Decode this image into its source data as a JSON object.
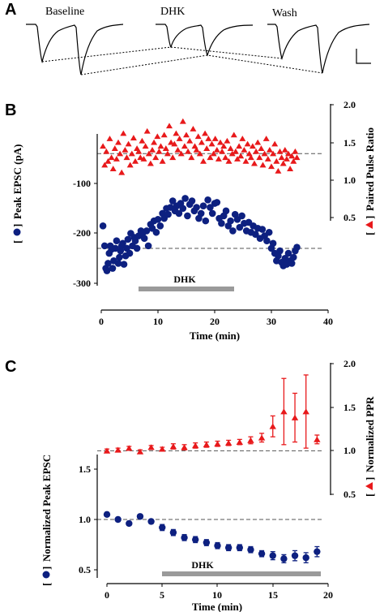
{
  "colors": {
    "ppr": "#e8191b",
    "epsc": "#0d2080",
    "dhk_bar": "#9a9a9a",
    "axis": "#000000",
    "dashed": "#555555"
  },
  "panel_a": {
    "letter": "A",
    "labels": [
      "Baseline",
      "DHK",
      "Wash"
    ]
  },
  "panel_b": {
    "letter": "B",
    "drug_label": "DHK",
    "x_axis_title": "Time (min)",
    "y_left_title": "Peak EPSC (pA)",
    "y_left_bracket_open": "[",
    "y_left_bracket_close": "]",
    "y_right_title": "Paired Pulse Ratio",
    "x_ticks": [
      "0",
      "10",
      "20",
      "30",
      "40"
    ],
    "y_left_ticks": [
      "-100",
      "-200",
      "-300"
    ],
    "y_right_ticks": [
      "2.0",
      "1.5",
      "1.0",
      "0.5"
    ]
  },
  "panel_c": {
    "letter": "C",
    "drug_label": "DHK",
    "x_axis_title": "Time (min)",
    "y_left_title": "Normalized Peak EPSC",
    "y_left_bracket_open": "[",
    "y_left_bracket_close": "]",
    "y_right_title": "Normalized PPR",
    "x_ticks": [
      "0",
      "5",
      "10",
      "15",
      "20"
    ],
    "y_left_ticks": [
      "1.5",
      "1.0",
      "0.5"
    ],
    "y_right_ticks": [
      "2.0",
      "1.5",
      "1.0",
      "0.5"
    ]
  },
  "chart_data": [
    {
      "panel": "B",
      "type": "scatter",
      "xlabel": "Time (min)",
      "ylabel": "Peak EPSC (pA)",
      "ylabel_right": "Paired Pulse Ratio",
      "xlim": [
        0,
        40
      ],
      "ylim": [
        -300,
        -30
      ],
      "ylim_right": [
        0.5,
        2.0
      ],
      "drug_bar": {
        "label": "DHK",
        "x_start": 6.5,
        "x_end": 23
      },
      "baseline_lines": {
        "epsc": -230,
        "ppr": 1.35
      },
      "series": [
        {
          "axis": "left",
          "marker": "circle",
          "x": [
            0.3,
            0.6,
            0.8,
            1.0,
            1.2,
            1.4,
            1.6,
            1.8,
            2.0,
            2.2,
            2.5,
            2.7,
            3.0,
            3.2,
            3.4,
            3.6,
            3.8,
            4.0,
            4.3,
            4.5,
            4.7,
            5.0,
            5.2,
            5.5,
            5.8,
            6.0,
            6.3,
            6.6,
            7.0,
            7.3,
            7.6,
            8.0,
            8.3,
            8.7,
            9.0,
            9.3,
            9.7,
            10.0,
            10.4,
            10.8,
            11.1,
            11.5,
            11.8,
            12.2,
            12.6,
            13.0,
            13.3,
            13.7,
            14.0,
            14.4,
            14.8,
            15.2,
            15.6,
            16.0,
            16.4,
            16.8,
            17.2,
            17.6,
            18.0,
            18.4,
            18.8,
            19.2,
            19.6,
            20.0,
            20.4,
            20.8,
            21.2,
            21.6,
            22.0,
            22.4,
            22.8,
            23.2,
            23.6,
            24.0,
            24.4,
            24.8,
            25.2,
            25.6,
            26.0,
            26.4,
            26.8,
            27.2,
            27.6,
            28.0,
            28.4,
            28.8,
            29.2,
            29.6,
            30.0,
            30.3,
            30.6,
            30.9,
            31.2,
            31.5,
            31.8,
            32.1,
            32.4,
            32.7,
            33.0,
            33.3,
            33.6,
            33.9,
            34.2,
            34.5
          ],
          "y": [
            -185,
            -225,
            -270,
            -275,
            -260,
            -240,
            -225,
            -232,
            -270,
            -255,
            -230,
            -215,
            -260,
            -248,
            -235,
            -225,
            -220,
            -262,
            -245,
            -230,
            -212,
            -240,
            -200,
            -225,
            -208,
            -215,
            -230,
            -205,
            -195,
            -200,
            -210,
            -195,
            -225,
            -182,
            -190,
            -175,
            -198,
            -172,
            -185,
            -160,
            -170,
            -150,
            -162,
            -148,
            -135,
            -155,
            -145,
            -160,
            -140,
            -150,
            -130,
            -165,
            -142,
            -135,
            -155,
            -148,
            -170,
            -160,
            -145,
            -175,
            -133,
            -148,
            -160,
            -140,
            -138,
            -170,
            -180,
            -165,
            -155,
            -185,
            -175,
            -195,
            -162,
            -172,
            -188,
            -165,
            -180,
            -195,
            -178,
            -198,
            -185,
            -202,
            -190,
            -210,
            -192,
            -205,
            -215,
            -198,
            -230,
            -220,
            -240,
            -255,
            -245,
            -235,
            -258,
            -265,
            -250,
            -262,
            -240,
            -255,
            -260,
            -248,
            -235,
            -228
          ]
        },
        {
          "axis": "right",
          "marker": "triangle",
          "x": [
            0.3,
            0.6,
            0.9,
            1.2,
            1.5,
            1.8,
            2.1,
            2.4,
            2.7,
            3.0,
            3.3,
            3.6,
            3.9,
            4.2,
            4.5,
            4.8,
            5.1,
            5.4,
            5.7,
            6.0,
            6.3,
            6.6,
            6.9,
            7.2,
            7.5,
            7.8,
            8.1,
            8.4,
            8.7,
            9.0,
            9.3,
            9.6,
            9.9,
            10.2,
            10.5,
            10.8,
            11.1,
            11.4,
            11.7,
            12.0,
            12.3,
            12.6,
            12.9,
            13.2,
            13.5,
            13.8,
            14.1,
            14.4,
            14.7,
            15.0,
            15.3,
            15.6,
            15.9,
            16.2,
            16.5,
            16.8,
            17.1,
            17.4,
            17.7,
            18.0,
            18.3,
            18.6,
            18.9,
            19.2,
            19.5,
            19.8,
            20.1,
            20.4,
            20.7,
            21.0,
            21.3,
            21.6,
            21.9,
            22.2,
            22.5,
            22.8,
            23.1,
            23.4,
            23.7,
            24.0,
            24.3,
            24.6,
            24.9,
            25.2,
            25.5,
            25.8,
            26.1,
            26.4,
            26.7,
            27.0,
            27.3,
            27.6,
            27.9,
            28.2,
            28.5,
            28.8,
            29.1,
            29.4,
            29.7,
            30.0,
            30.3,
            30.6,
            30.9,
            31.2,
            31.5,
            31.8,
            32.1,
            32.4,
            32.7,
            33.0,
            33.3,
            33.6,
            33.9,
            34.2,
            34.5
          ],
          "y": [
            1.45,
            1.2,
            1.38,
            1.25,
            1.55,
            1.3,
            1.15,
            1.42,
            1.28,
            1.5,
            1.35,
            1.1,
            1.62,
            1.4,
            1.3,
            1.48,
            1.2,
            1.35,
            1.56,
            1.25,
            1.42,
            1.38,
            1.3,
            1.52,
            1.28,
            1.45,
            1.65,
            1.35,
            1.22,
            1.4,
            1.5,
            1.3,
            1.58,
            1.38,
            1.45,
            1.25,
            1.6,
            1.42,
            1.35,
            1.72,
            1.5,
            1.3,
            1.48,
            1.62,
            1.4,
            1.55,
            1.35,
            1.78,
            1.45,
            1.6,
            1.38,
            1.52,
            1.3,
            1.68,
            1.45,
            1.4,
            1.58,
            1.35,
            1.5,
            1.25,
            1.62,
            1.42,
            1.55,
            1.3,
            1.48,
            1.35,
            1.55,
            1.4,
            1.28,
            1.5,
            1.38,
            1.45,
            1.3,
            1.52,
            1.25,
            1.42,
            1.35,
            1.6,
            1.38,
            1.28,
            1.45,
            1.32,
            1.55,
            1.4,
            1.25,
            1.48,
            1.35,
            1.3,
            1.45,
            1.22,
            1.38,
            1.5,
            1.3,
            1.42,
            1.2,
            1.35,
            1.55,
            1.28,
            1.4,
            1.18,
            1.35,
            1.48,
            1.25,
            1.12,
            1.38,
            1.3,
            1.22,
            1.4,
            1.28,
            1.35,
            1.15,
            1.32,
            1.25,
            1.38,
            1.3
          ]
        }
      ]
    },
    {
      "panel": "C",
      "type": "scatter",
      "xlabel": "Time (min)",
      "ylabel": "Normalized Peak EPSC",
      "ylabel_right": "Normalized PPR",
      "xlim": [
        0,
        20
      ],
      "ylim": [
        0.5,
        1.75
      ],
      "ylim_right": [
        0.5,
        2.0
      ],
      "drug_bar": {
        "label": "DHK",
        "x_start": 5,
        "x_end": 19
      },
      "baseline_lines": {
        "epsc": 1.0,
        "ppr": 1.0
      },
      "series": [
        {
          "axis": "left",
          "marker": "circle",
          "x": [
            0,
            1,
            2,
            3,
            4,
            5,
            6,
            7,
            8,
            9,
            10,
            11,
            12,
            13,
            14,
            15,
            16,
            17,
            18,
            19
          ],
          "y": [
            1.05,
            1.0,
            0.96,
            1.03,
            0.98,
            0.92,
            0.87,
            0.82,
            0.8,
            0.77,
            0.74,
            0.72,
            0.72,
            0.7,
            0.66,
            0.64,
            0.61,
            0.64,
            0.62,
            0.68
          ],
          "err": [
            0.02,
            0.02,
            0.02,
            0.02,
            0.02,
            0.03,
            0.03,
            0.03,
            0.03,
            0.03,
            0.03,
            0.03,
            0.03,
            0.03,
            0.03,
            0.04,
            0.04,
            0.05,
            0.05,
            0.05
          ]
        },
        {
          "axis": "right",
          "marker": "triangle",
          "x": [
            0,
            1,
            2,
            3,
            4,
            5,
            6,
            7,
            8,
            9,
            10,
            11,
            12,
            13,
            14,
            15,
            16,
            17,
            18,
            19
          ],
          "y": [
            1.0,
            1.01,
            1.03,
            0.99,
            1.04,
            1.02,
            1.05,
            1.04,
            1.06,
            1.07,
            1.08,
            1.09,
            1.1,
            1.12,
            1.15,
            1.28,
            1.45,
            1.38,
            1.45,
            1.13
          ],
          "err": [
            0.02,
            0.02,
            0.02,
            0.02,
            0.02,
            0.02,
            0.03,
            0.03,
            0.03,
            0.03,
            0.03,
            0.03,
            0.03,
            0.04,
            0.05,
            0.12,
            0.38,
            0.28,
            0.42,
            0.05
          ]
        }
      ]
    }
  ]
}
